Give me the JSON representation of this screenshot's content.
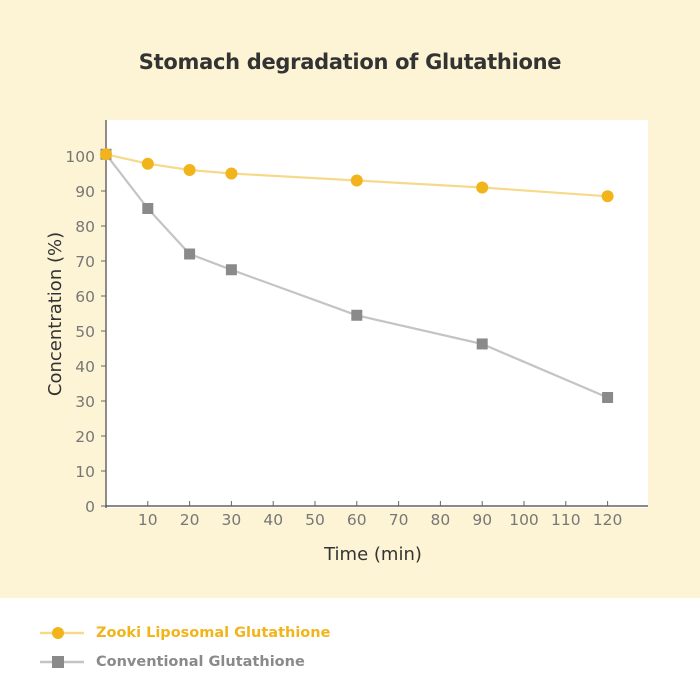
{
  "chart_data": {
    "type": "line",
    "title": "Stomach degradation of Glutathione",
    "xlabel": "Time (min)",
    "ylabel": "Concentration (%)",
    "xlim": [
      0,
      130
    ],
    "ylim": [
      0,
      110
    ],
    "xticks": [
      10,
      20,
      30,
      40,
      50,
      60,
      70,
      80,
      90,
      100,
      110,
      120
    ],
    "yticks": [
      0,
      10,
      20,
      30,
      40,
      50,
      60,
      70,
      80,
      90,
      100
    ],
    "grid": false,
    "legend_position": "bottom",
    "series": [
      {
        "name": "Zooki Liposomal Glutathione",
        "marker": "circle",
        "color": "#f2b41b",
        "line_color": "#f7d98a",
        "x": [
          0,
          10,
          20,
          30,
          60,
          90,
          120
        ],
        "y": [
          100.5,
          97.8,
          96,
          95,
          93,
          91,
          88.5
        ]
      },
      {
        "name": "Conventional Glutathione",
        "marker": "square",
        "color": "#8a8a8a",
        "line_color": "#c4c4c4",
        "x": [
          0,
          10,
          20,
          30,
          60,
          90,
          120
        ],
        "y": [
          100.5,
          85,
          72,
          67.5,
          54.5,
          46.3,
          31
        ]
      }
    ]
  }
}
